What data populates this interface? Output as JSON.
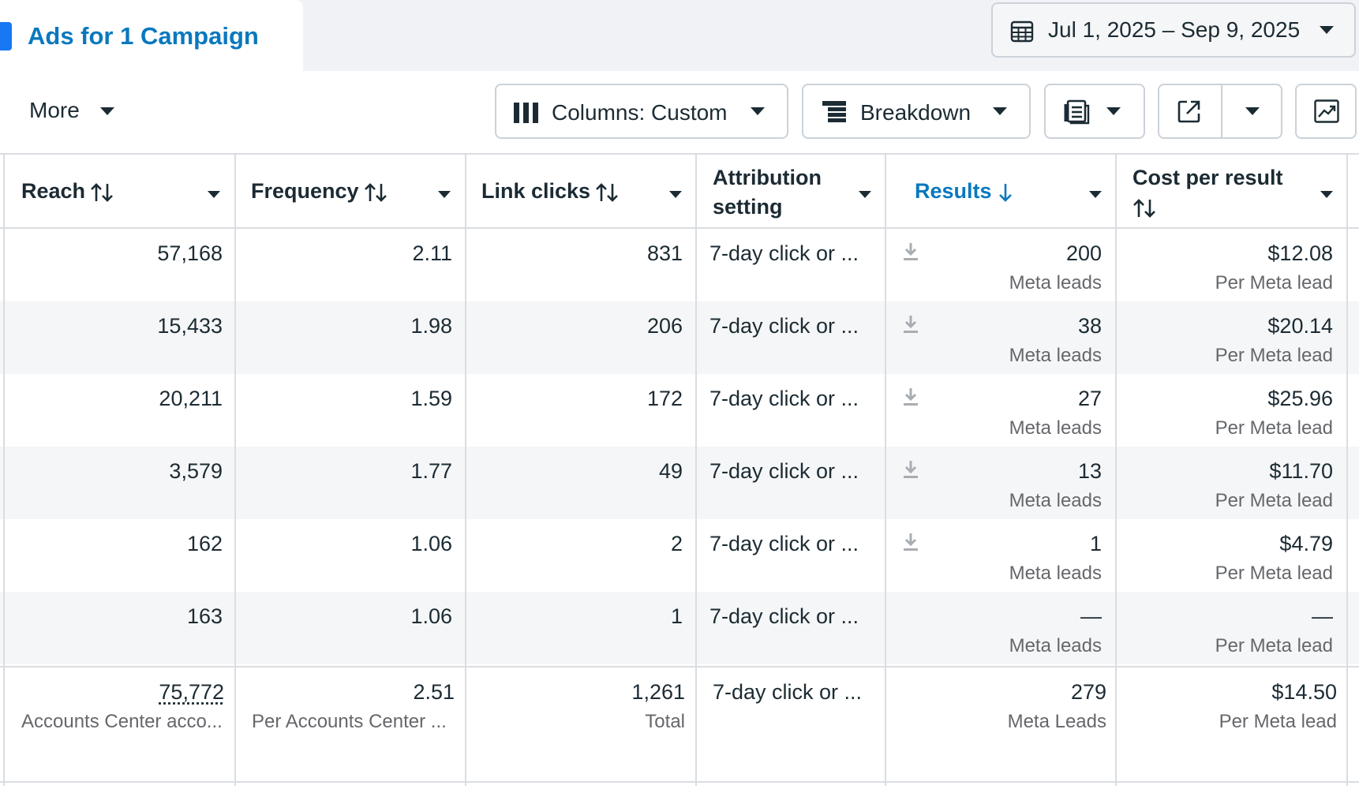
{
  "header": {
    "tab_title": "Ads for 1 Campaign",
    "date_range": "Jul 1, 2025 – Sep 9, 2025"
  },
  "toolbar": {
    "more_label": "More",
    "columns_label": "Columns: Custom",
    "breakdown_label": "Breakdown"
  },
  "columns": [
    {
      "label": "Reach"
    },
    {
      "label": "Frequency"
    },
    {
      "label": "Link clicks"
    },
    {
      "label_line1": "Attribution",
      "label_line2": "setting"
    },
    {
      "label": "Results"
    },
    {
      "label": "Cost per result"
    }
  ],
  "rows": [
    {
      "reach": "57,168",
      "frequency": "2.11",
      "link_clicks": "831",
      "attribution": "7-day click or ...",
      "results": "200",
      "results_sub": "Meta leads",
      "cost": "$12.08",
      "cost_sub": "Per Meta lead"
    },
    {
      "reach": "15,433",
      "frequency": "1.98",
      "link_clicks": "206",
      "attribution": "7-day click or ...",
      "results": "38",
      "results_sub": "Meta leads",
      "cost": "$20.14",
      "cost_sub": "Per Meta lead"
    },
    {
      "reach": "20,211",
      "frequency": "1.59",
      "link_clicks": "172",
      "attribution": "7-day click or ...",
      "results": "27",
      "results_sub": "Meta leads",
      "cost": "$25.96",
      "cost_sub": "Per Meta lead"
    },
    {
      "reach": "3,579",
      "frequency": "1.77",
      "link_clicks": "49",
      "attribution": "7-day click or ...",
      "results": "13",
      "results_sub": "Meta leads",
      "cost": "$11.70",
      "cost_sub": "Per Meta lead"
    },
    {
      "reach": "162",
      "frequency": "1.06",
      "link_clicks": "2",
      "attribution": "7-day click or ...",
      "results": "1",
      "results_sub": "Meta leads",
      "cost": "$4.79",
      "cost_sub": "Per Meta lead"
    },
    {
      "reach": "163",
      "frequency": "1.06",
      "link_clicks": "1",
      "attribution": "7-day click or ...",
      "results": "—",
      "results_sub": "Meta leads",
      "cost": "—",
      "cost_sub": "Per Meta lead"
    }
  ],
  "totals": {
    "reach": "75,772",
    "reach_sub": "Accounts Center acco...",
    "frequency": "2.51",
    "frequency_sub": "Per Accounts Center ...",
    "link_clicks": "1,261",
    "link_clicks_sub": "Total",
    "attribution": "7-day click or ...",
    "results": "279",
    "results_sub": "Meta Leads",
    "cost": "$14.50",
    "cost_sub": "Per Meta lead"
  },
  "colors": {
    "accent_blue": "#0a78be",
    "brand_blue": "#1877f2",
    "border": "#cbd2d9",
    "row_alt": "#f5f6f7"
  }
}
